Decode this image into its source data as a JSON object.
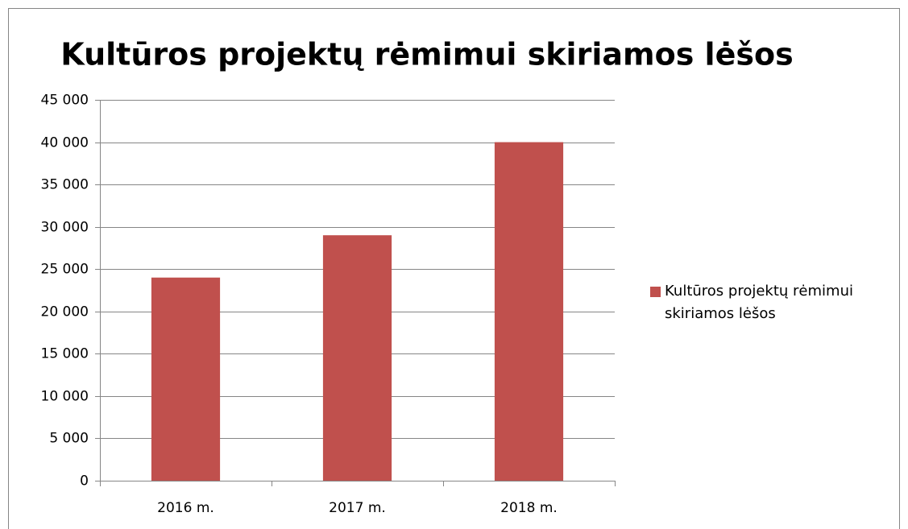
{
  "chart_data": {
    "type": "bar",
    "title": "Kultūros projektų rėmimui skiriamos lėšos",
    "categories": [
      "2016 m.",
      "2017 m.",
      "2018 m."
    ],
    "series": [
      {
        "name": "Kultūros projektų rėmimui skiriamos lėšos",
        "color": "#c0504d",
        "values": [
          24000,
          29000,
          40000
        ]
      }
    ],
    "ylim": [
      0,
      45000
    ],
    "yticks": [
      {
        "value": 0,
        "label": "0"
      },
      {
        "value": 5000,
        "label": "5 000"
      },
      {
        "value": 10000,
        "label": "10 000"
      },
      {
        "value": 15000,
        "label": "15 000"
      },
      {
        "value": 20000,
        "label": "20 000"
      },
      {
        "value": 25000,
        "label": "25 000"
      },
      {
        "value": 30000,
        "label": "30 000"
      },
      {
        "value": 35000,
        "label": "35 000"
      },
      {
        "value": 40000,
        "label": "40 000"
      },
      {
        "value": 45000,
        "label": "45 000"
      }
    ],
    "grid": true,
    "legend": "right"
  }
}
